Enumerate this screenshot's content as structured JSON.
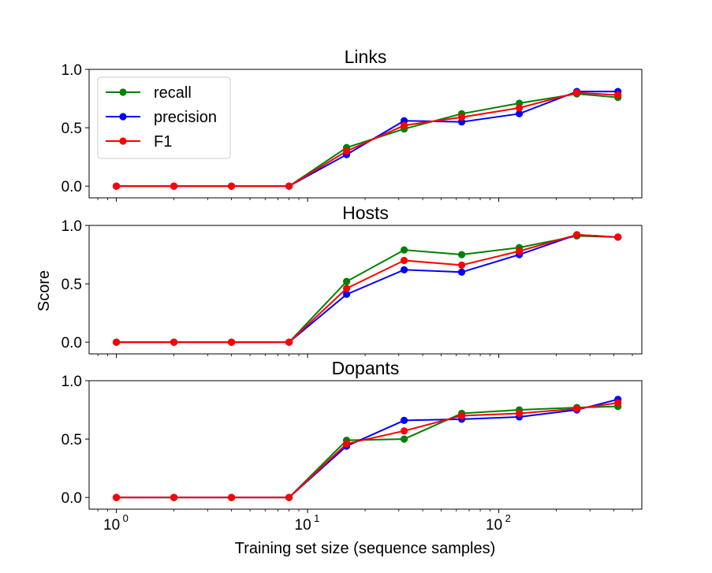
{
  "chart_data": {
    "type": "line",
    "xscale": "log",
    "xlim": [
      0.72,
      560
    ],
    "ylim": [
      -0.1,
      1.0
    ],
    "x_tick_labels": [
      "10",
      "10",
      "10"
    ],
    "x_tick_exponents": [
      "0",
      "1",
      "2"
    ],
    "y_tick_labels": [
      "0.0",
      "0.5",
      "1.0"
    ],
    "xlabel": "Training set size (sequence samples)",
    "ylabel": "Score",
    "legend": {
      "placement": "upper-left",
      "entries": [
        "recall",
        "precision",
        "F1"
      ]
    },
    "x": [
      1,
      2,
      4,
      8,
      16,
      32,
      64,
      128,
      256,
      420
    ],
    "series_colors": {
      "recall": "#008000",
      "precision": "#0000ff",
      "F1": "#ff0000"
    },
    "panels": [
      {
        "title": "Links",
        "series": [
          {
            "name": "recall",
            "values": [
              0,
              0,
              0,
              0,
              0.33,
              0.49,
              0.62,
              0.71,
              0.79,
              0.76
            ]
          },
          {
            "name": "precision",
            "values": [
              0,
              0,
              0,
              0,
              0.27,
              0.56,
              0.55,
              0.62,
              0.81,
              0.81
            ]
          },
          {
            "name": "F1",
            "values": [
              0,
              0,
              0,
              0,
              0.3,
              0.52,
              0.59,
              0.67,
              0.8,
              0.78
            ]
          }
        ]
      },
      {
        "title": "Hosts",
        "series": [
          {
            "name": "recall",
            "values": [
              0,
              0,
              0,
              0,
              0.52,
              0.79,
              0.75,
              0.81,
              0.91,
              0.9
            ]
          },
          {
            "name": "precision",
            "values": [
              0,
              0,
              0,
              0,
              0.41,
              0.62,
              0.6,
              0.75,
              0.92,
              0.9
            ]
          },
          {
            "name": "F1",
            "values": [
              0,
              0,
              0,
              0,
              0.46,
              0.7,
              0.66,
              0.78,
              0.92,
              0.9
            ]
          }
        ]
      },
      {
        "title": "Dopants",
        "series": [
          {
            "name": "recall",
            "values": [
              0,
              0,
              0,
              0,
              0.49,
              0.5,
              0.72,
              0.75,
              0.77,
              0.78
            ]
          },
          {
            "name": "precision",
            "values": [
              0,
              0,
              0,
              0,
              0.44,
              0.66,
              0.67,
              0.69,
              0.75,
              0.84
            ]
          },
          {
            "name": "F1",
            "values": [
              0,
              0,
              0,
              0,
              0.46,
              0.57,
              0.7,
              0.72,
              0.76,
              0.81
            ]
          }
        ]
      }
    ]
  }
}
